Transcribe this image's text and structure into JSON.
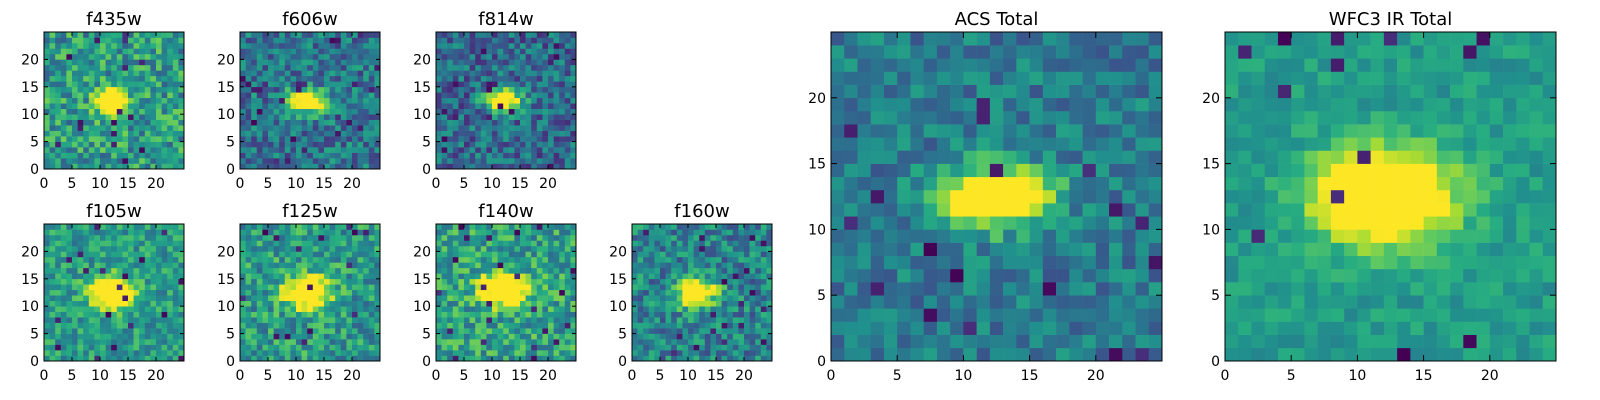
{
  "chart_data": [
    {
      "type": "heatmap",
      "title": "f435w",
      "xlim": [
        0,
        25
      ],
      "ylim": [
        0,
        25
      ],
      "xticks": [
        0,
        5,
        10,
        15,
        20
      ],
      "yticks": [
        0,
        5,
        10,
        15,
        20
      ],
      "colormap": "viridis",
      "grid": false,
      "seed": 11,
      "source": {
        "cx": 12.0,
        "cy": 12.5,
        "rx": 1.8,
        "ry": 1.6,
        "peak": 0.95
      },
      "background": 0.55,
      "noise": 0.24
    },
    {
      "type": "heatmap",
      "title": "f606w",
      "xlim": [
        0,
        25
      ],
      "ylim": [
        0,
        25
      ],
      "xticks": [
        0,
        5,
        10,
        15,
        20
      ],
      "yticks": [
        0,
        5,
        10,
        15,
        20
      ],
      "colormap": "viridis",
      "grid": false,
      "seed": 23,
      "source": {
        "cx": 12.0,
        "cy": 12.5,
        "rx": 2.2,
        "ry": 1.5,
        "peak": 0.95
      },
      "background": 0.4,
      "noise": 0.22
    },
    {
      "type": "heatmap",
      "title": "f814w",
      "xlim": [
        0,
        25
      ],
      "ylim": [
        0,
        25
      ],
      "xticks": [
        0,
        5,
        10,
        15,
        20
      ],
      "yticks": [
        0,
        5,
        10,
        15,
        20
      ],
      "colormap": "viridis",
      "grid": false,
      "seed": 37,
      "source": {
        "cx": 12.0,
        "cy": 12.5,
        "rx": 2.2,
        "ry": 1.5,
        "peak": 0.95
      },
      "background": 0.35,
      "noise": 0.22
    },
    {
      "type": "heatmap",
      "title": "f105w",
      "xlim": [
        0,
        25
      ],
      "ylim": [
        0,
        25
      ],
      "xticks": [
        0,
        5,
        10,
        15,
        20
      ],
      "yticks": [
        0,
        5,
        10,
        15,
        20
      ],
      "colormap": "viridis",
      "grid": false,
      "seed": 41,
      "source": {
        "cx": 12.0,
        "cy": 12.5,
        "rx": 2.6,
        "ry": 2.0,
        "peak": 0.9
      },
      "background": 0.55,
      "noise": 0.18
    },
    {
      "type": "heatmap",
      "title": "f125w",
      "xlim": [
        0,
        25
      ],
      "ylim": [
        0,
        25
      ],
      "xticks": [
        0,
        5,
        10,
        15,
        20
      ],
      "yticks": [
        0,
        5,
        10,
        15,
        20
      ],
      "colormap": "viridis",
      "grid": false,
      "seed": 53,
      "source": {
        "cx": 12.0,
        "cy": 12.5,
        "rx": 2.8,
        "ry": 2.0,
        "peak": 0.9
      },
      "background": 0.55,
      "noise": 0.22
    },
    {
      "type": "heatmap",
      "title": "f140w",
      "xlim": [
        0,
        25
      ],
      "ylim": [
        0,
        25
      ],
      "xticks": [
        0,
        5,
        10,
        15,
        20
      ],
      "yticks": [
        0,
        5,
        10,
        15,
        20
      ],
      "colormap": "viridis",
      "grid": false,
      "seed": 67,
      "source": {
        "cx": 12.0,
        "cy": 13.0,
        "rx": 2.8,
        "ry": 2.0,
        "peak": 0.9
      },
      "background": 0.58,
      "noise": 0.22
    },
    {
      "type": "heatmap",
      "title": "f160w",
      "xlim": [
        0,
        25
      ],
      "ylim": [
        0,
        25
      ],
      "xticks": [
        0,
        5,
        10,
        15,
        20
      ],
      "yticks": [
        0,
        5,
        10,
        15,
        20
      ],
      "colormap": "viridis",
      "grid": false,
      "seed": 71,
      "source": {
        "cx": 11.5,
        "cy": 12.5,
        "rx": 2.4,
        "ry": 1.8,
        "peak": 0.92
      },
      "background": 0.45,
      "noise": 0.22
    },
    {
      "type": "heatmap",
      "title": "ACS Total",
      "xlim": [
        0,
        25
      ],
      "ylim": [
        0,
        25
      ],
      "xticks": [
        0,
        5,
        10,
        15,
        20
      ],
      "yticks": [
        0,
        5,
        10,
        15,
        20
      ],
      "colormap": "viridis",
      "grid": false,
      "seed": 83,
      "source": {
        "cx": 12.5,
        "cy": 12.5,
        "rx": 2.8,
        "ry": 1.6,
        "peak": 0.98
      },
      "background": 0.42,
      "noise": 0.16
    },
    {
      "type": "heatmap",
      "title": "WFC3 IR Total",
      "xlim": [
        0,
        25
      ],
      "ylim": [
        0,
        25
      ],
      "xticks": [
        0,
        5,
        10,
        15,
        20
      ],
      "yticks": [
        0,
        5,
        10,
        15,
        20
      ],
      "colormap": "viridis",
      "grid": false,
      "seed": 97,
      "source": {
        "cx": 12.0,
        "cy": 12.5,
        "rx": 3.6,
        "ry": 2.4,
        "peak": 0.96
      },
      "background": 0.55,
      "noise": 0.1
    }
  ]
}
